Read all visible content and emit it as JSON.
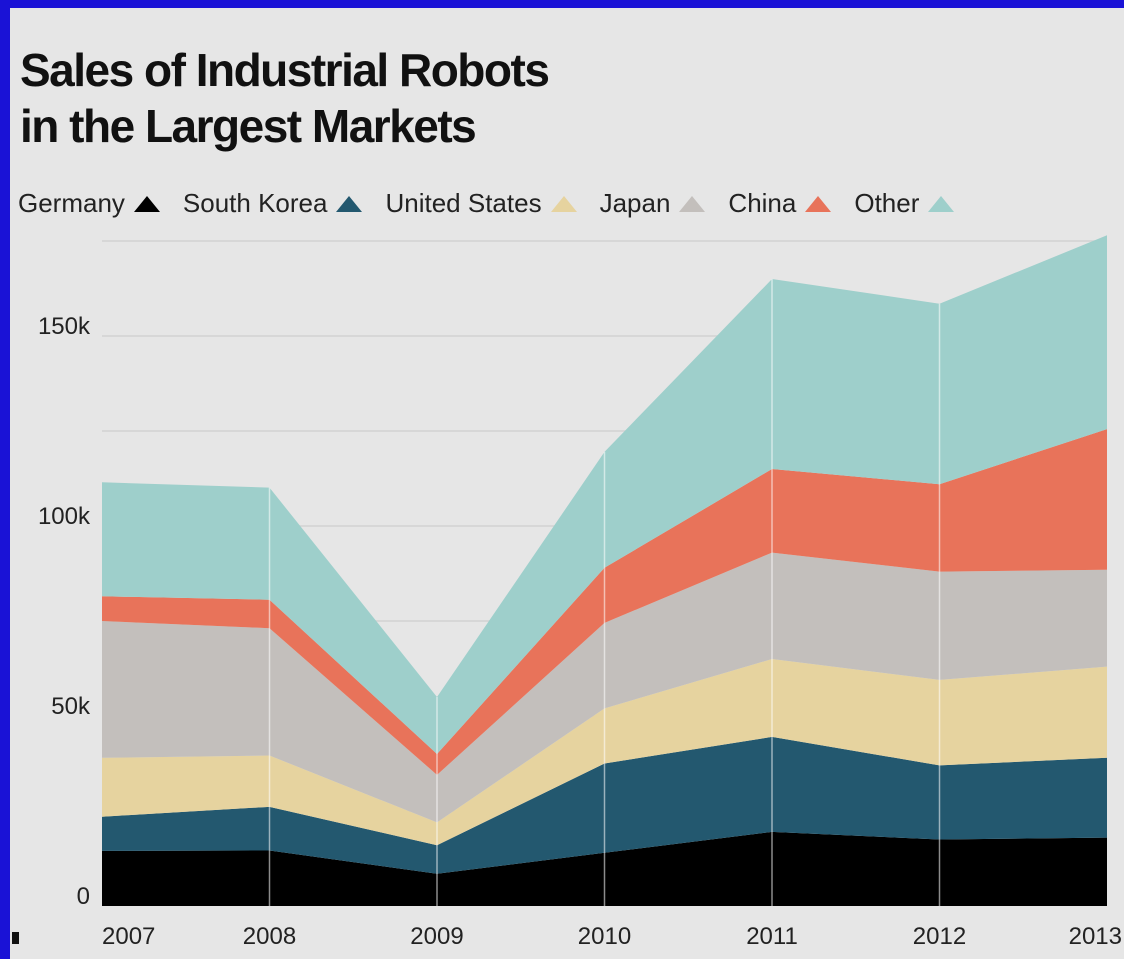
{
  "chart_data": {
    "type": "area",
    "stacked": true,
    "title": "Sales of Industrial Robots\nin the Largest Markets",
    "x": [
      "2007",
      "2008",
      "2009",
      "2010",
      "2011",
      "2012",
      "2013"
    ],
    "series": [
      {
        "name": "Germany",
        "color": "#000000",
        "values": [
          14500,
          14600,
          8500,
          14000,
          19500,
          17500,
          18000
        ]
      },
      {
        "name": "South Korea",
        "color": "#23586f",
        "values": [
          9000,
          11500,
          7500,
          23500,
          25000,
          19500,
          21000
        ]
      },
      {
        "name": "United States",
        "color": "#e6d39f",
        "values": [
          15500,
          13500,
          6000,
          14500,
          20500,
          22500,
          24000
        ]
      },
      {
        "name": "Japan",
        "color": "#c3bfbc",
        "values": [
          36000,
          33500,
          12500,
          22500,
          28000,
          28500,
          25500
        ]
      },
      {
        "name": "China",
        "color": "#e8735a",
        "values": [
          6500,
          7500,
          5500,
          14500,
          22000,
          23000,
          37000
        ]
      },
      {
        "name": "Other",
        "color": "#9ecfcb",
        "values": [
          30000,
          29500,
          15000,
          30500,
          50000,
          47500,
          51000
        ]
      }
    ],
    "y_ticks": [
      "0",
      "50k",
      "100k",
      "150k"
    ],
    "y_tick_values": [
      0,
      50000,
      100000,
      150000
    ],
    "ylim": [
      0,
      175000
    ],
    "legend_position": "top",
    "grid": true
  }
}
